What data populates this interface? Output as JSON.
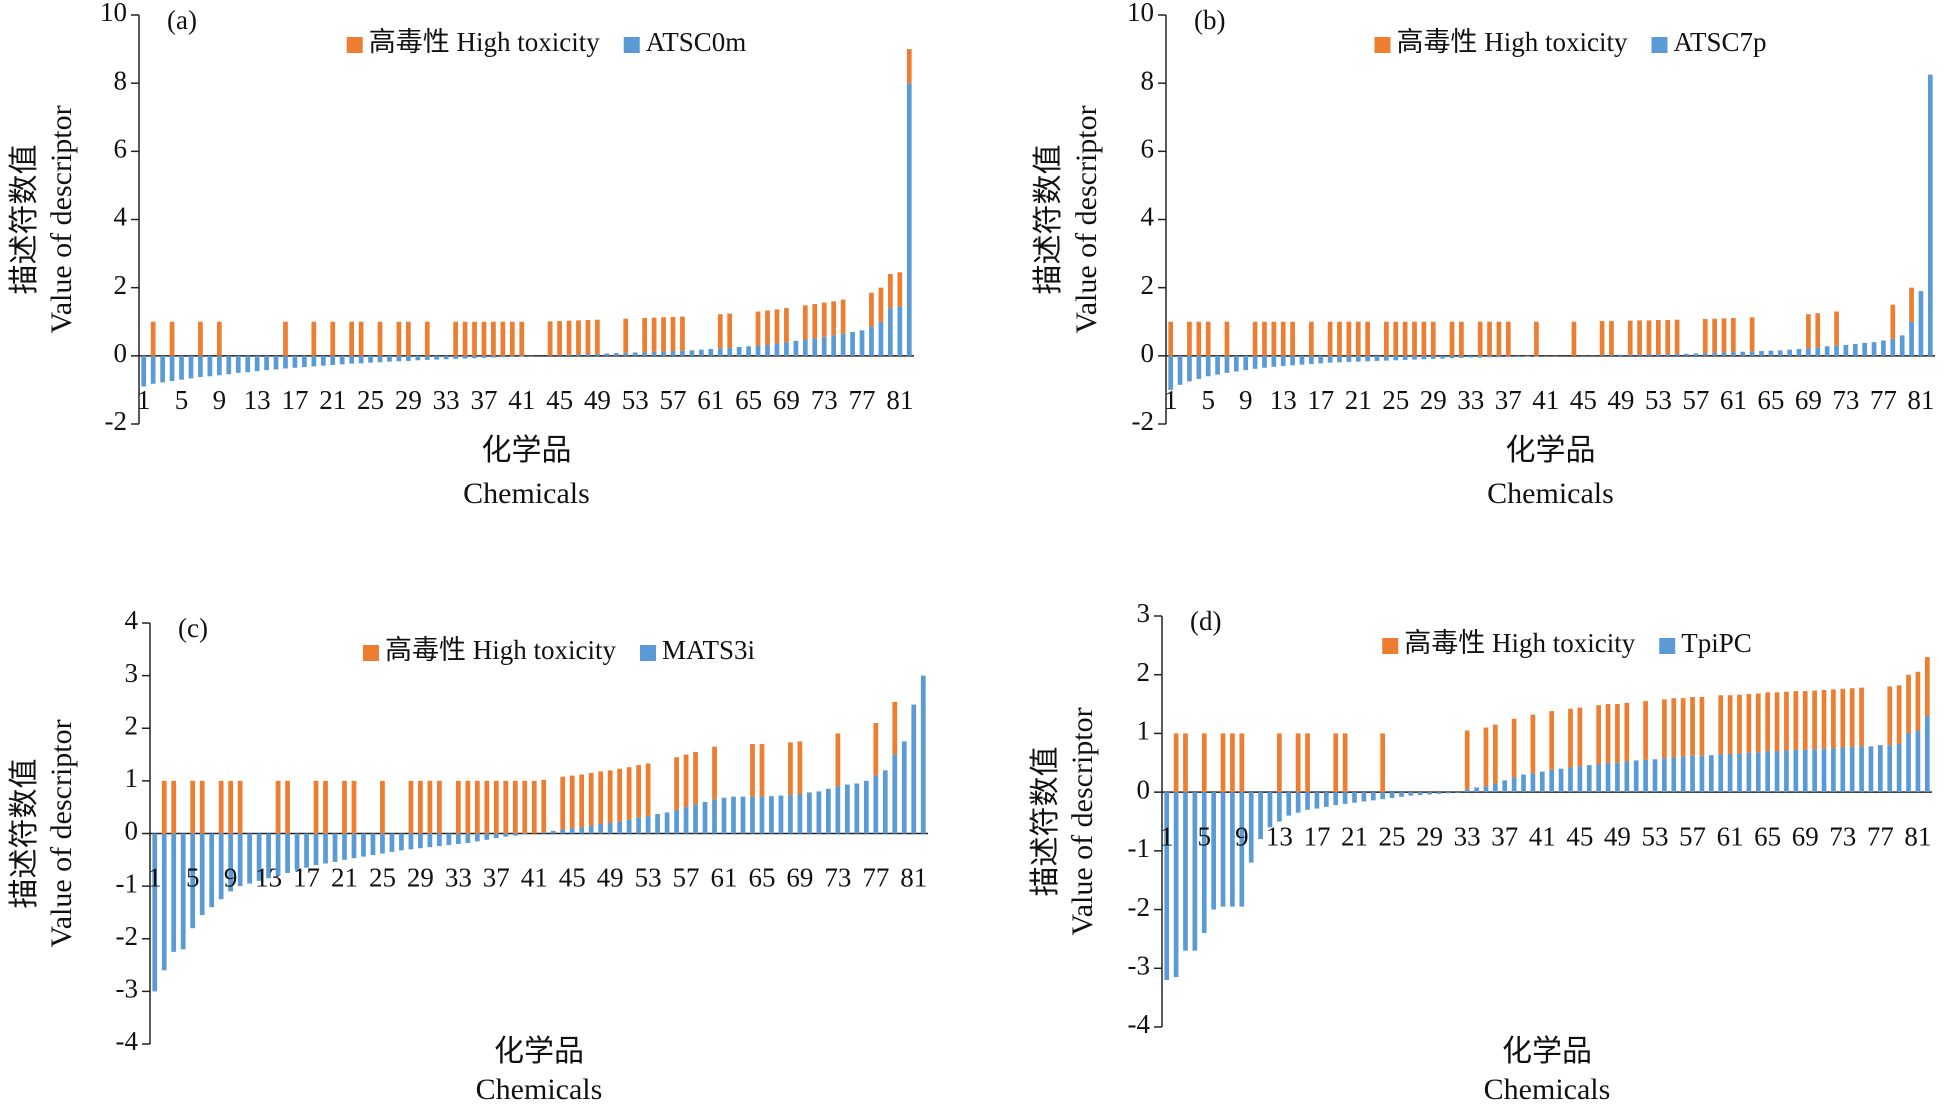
{
  "chart_data": [
    {
      "type": "bar",
      "stacked": true,
      "panel_label": "(a)",
      "ylabel": [
        "描述符数值",
        "Value of descriptor"
      ],
      "xlabel": [
        "化学品",
        "Chemicals"
      ],
      "categories": [
        1,
        null,
        null,
        null,
        5,
        null,
        null,
        null,
        9,
        null,
        null,
        null,
        13,
        null,
        null,
        null,
        17,
        null,
        null,
        null,
        21,
        null,
        null,
        null,
        25,
        null,
        null,
        null,
        29,
        null,
        null,
        null,
        33,
        null,
        null,
        null,
        37,
        null,
        null,
        null,
        41,
        null,
        null,
        null,
        45,
        null,
        null,
        null,
        49,
        null,
        null,
        null,
        53,
        null,
        null,
        null,
        57,
        null,
        null,
        null,
        61,
        null,
        null,
        null,
        65,
        null,
        null,
        null,
        69,
        null,
        null,
        null,
        73,
        null,
        null,
        null,
        77,
        null,
        null,
        null,
        81,
        null
      ],
      "series": [
        {
          "name": "高毒性 High toxicity",
          "color": "#ed7d31",
          "values": [
            0,
            1,
            0,
            1,
            0,
            0,
            1,
            0,
            1,
            0,
            0,
            0,
            0,
            0,
            0,
            1,
            0,
            0,
            1,
            0,
            1,
            0,
            1,
            1,
            0,
            1,
            0,
            1,
            1,
            0,
            1,
            0,
            0,
            1,
            1,
            1,
            1,
            1,
            1,
            1,
            1,
            0,
            0,
            1,
            1,
            1,
            1,
            1,
            1,
            0,
            0,
            1,
            0,
            1,
            1,
            1,
            1,
            1,
            0,
            0,
            0,
            1,
            1,
            0,
            0,
            1,
            1,
            1,
            1,
            0,
            1,
            1,
            1,
            1,
            1,
            0,
            0,
            1,
            1,
            1,
            1,
            1
          ]
        },
        {
          "name": "ATSC0m",
          "color": "#5b9bd5",
          "values": [
            -0.9,
            -0.82,
            -0.78,
            -0.74,
            -0.7,
            -0.66,
            -0.62,
            -0.6,
            -0.57,
            -0.54,
            -0.5,
            -0.48,
            -0.45,
            -0.42,
            -0.4,
            -0.37,
            -0.35,
            -0.33,
            -0.31,
            -0.29,
            -0.27,
            -0.25,
            -0.23,
            -0.22,
            -0.2,
            -0.19,
            -0.17,
            -0.16,
            -0.15,
            -0.13,
            -0.12,
            -0.11,
            -0.1,
            -0.09,
            -0.08,
            -0.07,
            -0.06,
            -0.05,
            -0.04,
            -0.03,
            -0.02,
            -0.01,
            0,
            0.01,
            0.02,
            0.03,
            0.04,
            0.05,
            0.06,
            0.07,
            0.08,
            0.09,
            0.1,
            0.11,
            0.12,
            0.13,
            0.14,
            0.15,
            0.16,
            0.18,
            0.2,
            0.22,
            0.24,
            0.26,
            0.28,
            0.3,
            0.33,
            0.36,
            0.4,
            0.44,
            0.48,
            0.52,
            0.56,
            0.6,
            0.65,
            0.7,
            0.75,
            0.85,
            1.0,
            1.4,
            1.45,
            8.0
          ]
        }
      ],
      "ylim": [
        -2,
        10
      ],
      "yticks": [
        -2,
        0,
        2,
        4,
        6,
        8,
        10
      ]
    },
    {
      "type": "bar",
      "stacked": true,
      "panel_label": "(b)",
      "ylabel": [
        "描述符数值",
        "Value of descriptor"
      ],
      "xlabel": [
        "化学品",
        "Chemicals"
      ],
      "categories": [
        1,
        null,
        null,
        null,
        5,
        null,
        null,
        null,
        9,
        null,
        null,
        null,
        13,
        null,
        null,
        null,
        17,
        null,
        null,
        null,
        21,
        null,
        null,
        null,
        25,
        null,
        null,
        null,
        29,
        null,
        null,
        null,
        33,
        null,
        null,
        null,
        37,
        null,
        null,
        null,
        41,
        null,
        null,
        null,
        45,
        null,
        null,
        null,
        49,
        null,
        null,
        null,
        53,
        null,
        null,
        null,
        57,
        null,
        null,
        null,
        61,
        null,
        null,
        null,
        65,
        null,
        null,
        null,
        69,
        null,
        null,
        null,
        73,
        null,
        null,
        null,
        77,
        null,
        null,
        null,
        81,
        null
      ],
      "series": [
        {
          "name": "高毒性 High toxicity",
          "color": "#ed7d31",
          "values": [
            1,
            0,
            1,
            1,
            1,
            0,
            1,
            0,
            0,
            1,
            1,
            1,
            1,
            1,
            0,
            1,
            0,
            1,
            1,
            1,
            1,
            1,
            0,
            1,
            1,
            1,
            1,
            1,
            1,
            0,
            1,
            1,
            0,
            1,
            1,
            1,
            1,
            0,
            0,
            1,
            0,
            0,
            0,
            1,
            0,
            0,
            1,
            1,
            0,
            1,
            1,
            1,
            1,
            1,
            1,
            0,
            0,
            1,
            1,
            1,
            1,
            0,
            1,
            0,
            0,
            0,
            0,
            0,
            1,
            1,
            0,
            1,
            0,
            0,
            0,
            0,
            0,
            1,
            0,
            1,
            0,
            0
          ]
        },
        {
          "name": "ATSC7p",
          "color": "#5b9bd5",
          "values": [
            -1.0,
            -0.85,
            -0.75,
            -0.68,
            -0.6,
            -0.55,
            -0.5,
            -0.46,
            -0.42,
            -0.38,
            -0.35,
            -0.32,
            -0.3,
            -0.28,
            -0.26,
            -0.24,
            -0.22,
            -0.2,
            -0.19,
            -0.18,
            -0.17,
            -0.16,
            -0.15,
            -0.14,
            -0.13,
            -0.12,
            -0.11,
            -0.1,
            -0.09,
            -0.08,
            -0.07,
            -0.06,
            -0.05,
            -0.05,
            -0.04,
            -0.04,
            -0.03,
            -0.03,
            -0.02,
            -0.02,
            -0.01,
            -0.01,
            0,
            0,
            0.01,
            0.01,
            0.02,
            0.02,
            0.03,
            0.03,
            0.04,
            0.04,
            0.05,
            0.05,
            0.06,
            0.06,
            0.07,
            0.08,
            0.09,
            0.1,
            0.11,
            0.12,
            0.13,
            0.14,
            0.15,
            0.16,
            0.18,
            0.2,
            0.22,
            0.25,
            0.28,
            0.3,
            0.32,
            0.35,
            0.38,
            0.4,
            0.45,
            0.5,
            0.6,
            1.0,
            1.9,
            8.25
          ]
        }
      ],
      "ylim": [
        -2,
        10
      ],
      "yticks": [
        -2,
        0,
        2,
        4,
        6,
        8,
        10
      ]
    },
    {
      "type": "bar",
      "stacked": true,
      "panel_label": "(c)",
      "ylabel": [
        "描述符数值",
        "Value of descriptor"
      ],
      "xlabel": [
        "化学品",
        "Chemicals"
      ],
      "categories": [
        1,
        null,
        null,
        null,
        5,
        null,
        null,
        null,
        9,
        null,
        null,
        null,
        13,
        null,
        null,
        null,
        17,
        null,
        null,
        null,
        21,
        null,
        null,
        null,
        25,
        null,
        null,
        null,
        29,
        null,
        null,
        null,
        33,
        null,
        null,
        null,
        37,
        null,
        null,
        null,
        41,
        null,
        null,
        null,
        45,
        null,
        null,
        null,
        49,
        null,
        null,
        null,
        53,
        null,
        null,
        null,
        57,
        null,
        null,
        null,
        61,
        null,
        null,
        null,
        65,
        null,
        null,
        null,
        69,
        null,
        null,
        null,
        73,
        null,
        null,
        null,
        77,
        null,
        null,
        null,
        81,
        null
      ],
      "series": [
        {
          "name": "高毒性 High toxicity",
          "color": "#ed7d31",
          "values": [
            0,
            1,
            1,
            0,
            1,
            1,
            0,
            1,
            1,
            1,
            0,
            0,
            0,
            1,
            1,
            0,
            0,
            1,
            1,
            0,
            1,
            1,
            0,
            0,
            1,
            0,
            0,
            1,
            1,
            1,
            1,
            0,
            1,
            1,
            1,
            1,
            1,
            1,
            1,
            1,
            1,
            1,
            0,
            1,
            1,
            1,
            1,
            1,
            1,
            1,
            1,
            1,
            1,
            0,
            0,
            1,
            1,
            1,
            0,
            1,
            0,
            0,
            0,
            1,
            1,
            0,
            0,
            1,
            1,
            0,
            0,
            0,
            1,
            0,
            0,
            0,
            1,
            0,
            1,
            0,
            0,
            0
          ]
        },
        {
          "name": "MATS3i",
          "color": "#5b9bd5",
          "values": [
            -3.0,
            -2.6,
            -2.25,
            -2.2,
            -1.8,
            -1.55,
            -1.4,
            -1.25,
            -1.1,
            -1.0,
            -0.95,
            -0.9,
            -0.85,
            -0.8,
            -0.75,
            -0.7,
            -0.65,
            -0.6,
            -0.57,
            -0.54,
            -0.5,
            -0.47,
            -0.44,
            -0.41,
            -0.38,
            -0.35,
            -0.32,
            -0.3,
            -0.28,
            -0.26,
            -0.24,
            -0.22,
            -0.2,
            -0.18,
            -0.15,
            -0.12,
            -0.09,
            -0.06,
            -0.04,
            -0.02,
            0,
            0.02,
            0.05,
            0.08,
            0.1,
            0.12,
            0.15,
            0.18,
            0.2,
            0.23,
            0.26,
            0.3,
            0.33,
            0.37,
            0.4,
            0.45,
            0.5,
            0.55,
            0.6,
            0.65,
            0.68,
            0.7,
            0.7,
            0.7,
            0.7,
            0.71,
            0.72,
            0.73,
            0.75,
            0.78,
            0.8,
            0.85,
            0.9,
            0.93,
            0.95,
            1.0,
            1.1,
            1.2,
            1.5,
            1.75,
            2.45,
            3.0
          ]
        }
      ],
      "ylim": [
        -4,
        4
      ],
      "yticks": [
        -4,
        -3,
        -2,
        -1,
        0,
        1,
        2,
        3,
        4
      ]
    },
    {
      "type": "bar",
      "stacked": true,
      "panel_label": "(d)",
      "ylabel": [
        "描述符数值",
        "Value of descriptor"
      ],
      "xlabel": [
        "化学品",
        "Chemicals"
      ],
      "categories": [
        1,
        null,
        null,
        null,
        5,
        null,
        null,
        null,
        9,
        null,
        null,
        null,
        13,
        null,
        null,
        null,
        17,
        null,
        null,
        null,
        21,
        null,
        null,
        null,
        25,
        null,
        null,
        null,
        29,
        null,
        null,
        null,
        33,
        null,
        null,
        null,
        37,
        null,
        null,
        null,
        41,
        null,
        null,
        null,
        45,
        null,
        null,
        null,
        49,
        null,
        null,
        null,
        53,
        null,
        null,
        null,
        57,
        null,
        null,
        null,
        61,
        null,
        null,
        null,
        65,
        null,
        null,
        null,
        69,
        null,
        null,
        null,
        73,
        null,
        null,
        null,
        77,
        null,
        null,
        null,
        81,
        null
      ],
      "series": [
        {
          "name": "高毒性 High toxicity",
          "color": "#ed7d31",
          "values": [
            0,
            1,
            1,
            0,
            1,
            0,
            1,
            1,
            1,
            0,
            0,
            0,
            1,
            0,
            1,
            1,
            0,
            0,
            1,
            1,
            0,
            0,
            0,
            1,
            0,
            0,
            0,
            0,
            0,
            0,
            0,
            0,
            1,
            0,
            1,
            1,
            0,
            1,
            0,
            1,
            0,
            1,
            0,
            1,
            1,
            0,
            1,
            1,
            1,
            1,
            0,
            1,
            0,
            1,
            1,
            1,
            1,
            1,
            0,
            1,
            1,
            1,
            1,
            1,
            1,
            1,
            1,
            1,
            1,
            1,
            1,
            1,
            1,
            1,
            1,
            0,
            0,
            1,
            1,
            1,
            1,
            1
          ]
        },
        {
          "name": "TpiPC",
          "color": "#5b9bd5",
          "values": [
            -3.2,
            -3.15,
            -2.7,
            -2.7,
            -2.4,
            -2.0,
            -1.95,
            -1.95,
            -1.95,
            -1.2,
            -0.8,
            -0.6,
            -0.5,
            -0.4,
            -0.35,
            -0.3,
            -0.28,
            -0.25,
            -0.22,
            -0.2,
            -0.18,
            -0.16,
            -0.14,
            -0.12,
            -0.1,
            -0.08,
            -0.06,
            -0.05,
            -0.04,
            -0.03,
            -0.02,
            -0.01,
            0.05,
            0.08,
            0.1,
            0.15,
            0.2,
            0.25,
            0.3,
            0.32,
            0.35,
            0.38,
            0.4,
            0.42,
            0.44,
            0.46,
            0.48,
            0.5,
            0.5,
            0.52,
            0.54,
            0.55,
            0.56,
            0.58,
            0.6,
            0.6,
            0.62,
            0.62,
            0.63,
            0.65,
            0.65,
            0.66,
            0.67,
            0.68,
            0.7,
            0.7,
            0.71,
            0.72,
            0.72,
            0.73,
            0.74,
            0.75,
            0.76,
            0.77,
            0.78,
            0.78,
            0.8,
            0.8,
            0.82,
            1.0,
            1.05,
            1.3
          ]
        }
      ],
      "ylim": [
        -4,
        3
      ],
      "yticks": [
        -4,
        -3,
        -2,
        -1,
        0,
        1,
        2,
        3
      ]
    }
  ]
}
